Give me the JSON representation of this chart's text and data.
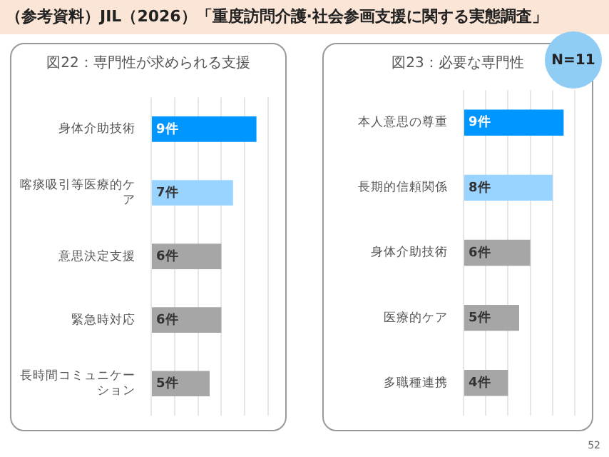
{
  "chart_data": [
    {
      "type": "bar",
      "orientation": "horizontal",
      "title": "図22：専門性が求められる支援",
      "categories": [
        "身体介助技術",
        "喀痰吸引等医療的ケア",
        "意思決定支援",
        "緊急時対応",
        "長時間コミュニケーション"
      ],
      "values": [
        9,
        7,
        6,
        6,
        5
      ],
      "colors": [
        "#0096ff",
        "#99d3ff",
        "#a6a6a6",
        "#a6a6a6",
        "#a6a6a6"
      ],
      "value_labels": [
        "9件",
        "7件",
        "6件",
        "6件",
        "5件"
      ],
      "xlim": [
        0,
        10
      ],
      "xticks": [
        {
          "value": 0,
          "label": null
        },
        {
          "value": 2,
          "label": null
        },
        {
          "value": 4,
          "label": null
        },
        {
          "value": 6,
          "label": null
        },
        {
          "value": 8,
          "label": null
        },
        {
          "value": 10,
          "label": null
        }
      ],
      "grid": "x",
      "tick_labels": "y",
      "annotations": [
        "（参考資料）JIL（2026）「重度訪問介護·社会参画支援に関する実態調査」",
        "52"
      ]
    },
    {
      "type": "bar",
      "orientation": "horizontal",
      "title": "図23：必要な専門性",
      "categories": [
        "本人意思の尊重",
        "長期的信頼関係",
        "身体介助技術",
        "医療的ケア",
        "多職種連携"
      ],
      "values": [
        9,
        8,
        6,
        5,
        4
      ],
      "colors": [
        "#0096ff",
        "#99d3ff",
        "#a6a6a6",
        "#a6a6a6",
        "#a6a6a6"
      ],
      "value_labels": [
        "9件",
        "8件",
        "6件",
        "5件",
        "4件"
      ],
      "xlim": [
        0,
        10
      ],
      "xticks": [
        {
          "value": 0,
          "label": null
        },
        {
          "value": 2,
          "label": null
        },
        {
          "value": 4,
          "label": null
        },
        {
          "value": 6,
          "label": null
        },
        {
          "value": 8,
          "label": null
        },
        {
          "value": 10,
          "label": null
        }
      ],
      "grid": "x",
      "tick_labels": "y",
      "annotations": [
        "N=11"
      ]
    }
  ]
}
